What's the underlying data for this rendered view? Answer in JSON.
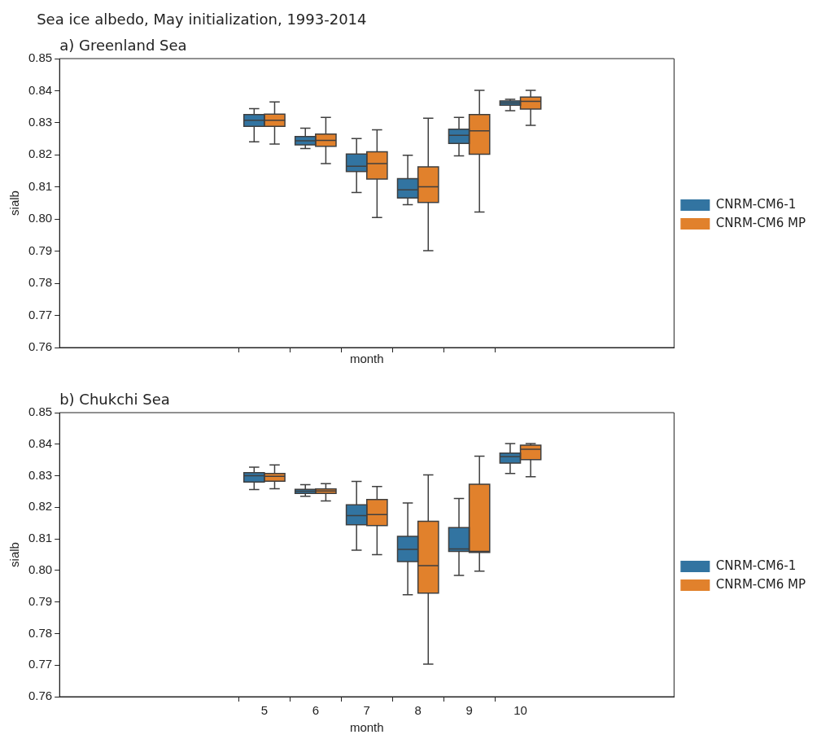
{
  "chart_data": [
    {
      "type": "box",
      "title": "Sea ice albedo, May initialization, 1993-2014",
      "subtitle": "a) Greenland Sea",
      "xlabel": "month",
      "ylabel": "sialb",
      "categories": [
        null,
        null,
        null,
        null,
        "5",
        "6",
        "7",
        "8",
        "9",
        "10",
        null,
        null,
        null
      ],
      "ylim": [
        0.76,
        0.85
      ],
      "yticks": [
        0.76,
        0.77,
        0.78,
        0.79,
        {
          "value": 0.8,
          "label": "0.80"
        },
        0.81,
        0.82,
        0.83,
        0.84,
        0.85
      ],
      "legend": "right",
      "tick_labels": "y",
      "series": [
        {
          "name": "CNRM-CM6-1",
          "color": "#3274a1",
          "boxes": [
            null,
            null,
            null,
            null,
            {
              "low": 0.8241,
              "q1": 0.8289,
              "median": 0.8308,
              "q3": 0.8326,
              "high": 0.8344
            },
            {
              "low": 0.822,
              "q1": 0.8231,
              "median": 0.8244,
              "q3": 0.8257,
              "high": 0.8283
            },
            {
              "low": 0.8083,
              "q1": 0.8148,
              "median": 0.8165,
              "q3": 0.8203,
              "high": 0.8251
            },
            {
              "low": 0.8045,
              "q1": 0.8066,
              "median": 0.8091,
              "q3": 0.8126,
              "high": 0.8199
            },
            {
              "low": 0.8197,
              "q1": 0.8236,
              "median": 0.8261,
              "q3": 0.828,
              "high": 0.8317
            },
            {
              "low": 0.8338,
              "q1": 0.8355,
              "median": 0.8362,
              "q3": 0.8368,
              "high": 0.8373
            },
            null,
            null,
            null
          ]
        },
        {
          "name": "CNRM-CM6 MP",
          "color": "#e1812c",
          "boxes": [
            null,
            null,
            null,
            null,
            {
              "low": 0.8234,
              "q1": 0.8289,
              "median": 0.8308,
              "q3": 0.8327,
              "high": 0.8365
            },
            {
              "low": 0.8173,
              "q1": 0.8227,
              "median": 0.8245,
              "q3": 0.8265,
              "high": 0.8317
            },
            {
              "low": 0.8005,
              "q1": 0.8125,
              "median": 0.8173,
              "q3": 0.821,
              "high": 0.8278
            },
            {
              "low": 0.7902,
              "q1": 0.8052,
              "median": 0.8101,
              "q3": 0.8163,
              "high": 0.8314
            },
            {
              "low": 0.8022,
              "q1": 0.8202,
              "median": 0.8275,
              "q3": 0.8326,
              "high": 0.8401
            },
            {
              "low": 0.8292,
              "q1": 0.8343,
              "median": 0.8367,
              "q3": 0.838,
              "high": 0.8401
            },
            null,
            null,
            null
          ]
        }
      ]
    },
    {
      "type": "box",
      "subtitle": "b) Chukchi Sea",
      "xlabel": "month",
      "ylabel": "sialb",
      "categories": [
        null,
        null,
        null,
        null,
        "5",
        "6",
        "7",
        "8",
        "9",
        "10",
        null,
        null,
        null
      ],
      "ylim": [
        0.76,
        0.85
      ],
      "yticks": [
        0.76,
        0.77,
        0.78,
        0.79,
        {
          "value": 0.8,
          "label": "0.80"
        },
        0.81,
        0.82,
        0.83,
        0.84,
        0.85
      ],
      "legend": "right",
      "series": [
        {
          "name": "CNRM-CM6-1",
          "color": "#3274a1",
          "boxes": [
            null,
            null,
            null,
            null,
            {
              "low": 0.8256,
              "q1": 0.828,
              "median": 0.83,
              "q3": 0.831,
              "high": 0.8327
            },
            {
              "low": 0.8235,
              "q1": 0.8244,
              "median": 0.8251,
              "q3": 0.8257,
              "high": 0.8272
            },
            {
              "low": 0.8064,
              "q1": 0.8145,
              "median": 0.8174,
              "q3": 0.8208,
              "high": 0.8282
            },
            {
              "low": 0.7923,
              "q1": 0.8028,
              "median": 0.8067,
              "q3": 0.8108,
              "high": 0.8214
            },
            {
              "low": 0.7984,
              "q1": 0.806,
              "median": 0.8068,
              "q3": 0.8136,
              "high": 0.8228
            },
            {
              "low": 0.8307,
              "q1": 0.834,
              "median": 0.8361,
              "q3": 0.8372,
              "high": 0.8402
            },
            null,
            null,
            null
          ]
        },
        {
          "name": "CNRM-CM6 MP",
          "color": "#e1812c",
          "boxes": [
            null,
            null,
            null,
            null,
            {
              "low": 0.8259,
              "q1": 0.8283,
              "median": 0.8298,
              "q3": 0.8307,
              "high": 0.8334
            },
            {
              "low": 0.822,
              "q1": 0.8244,
              "median": 0.8252,
              "q3": 0.8258,
              "high": 0.8275
            },
            {
              "low": 0.805,
              "q1": 0.8142,
              "median": 0.8177,
              "q3": 0.8225,
              "high": 0.8266
            },
            {
              "low": 0.7703,
              "q1": 0.7928,
              "median": 0.8015,
              "q3": 0.8156,
              "high": 0.8303
            },
            {
              "low": 0.7998,
              "q1": 0.8057,
              "median": 0.806,
              "q3": 0.8273,
              "high": 0.8362
            },
            {
              "low": 0.8297,
              "q1": 0.8351,
              "median": 0.8384,
              "q3": 0.8397,
              "high": 0.8402
            },
            null,
            null,
            null
          ]
        }
      ]
    }
  ]
}
